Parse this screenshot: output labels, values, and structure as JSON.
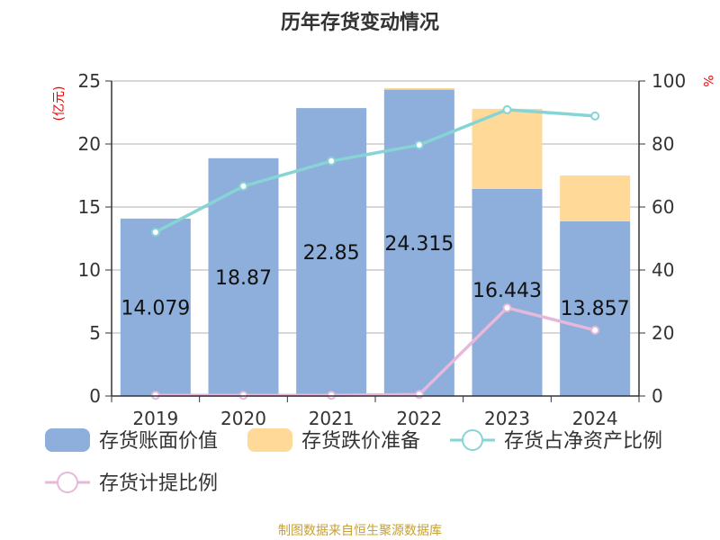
{
  "chart_data": {
    "type": "bar",
    "title": "历年存货变动情况",
    "categories": [
      "2019",
      "2020",
      "2021",
      "2022",
      "2023",
      "2024"
    ],
    "y_left": {
      "label": "(亿元)",
      "lim": [
        0,
        25
      ],
      "ticks": [
        0,
        5,
        10,
        15,
        20,
        25
      ]
    },
    "y_right": {
      "label": "%",
      "lim": [
        0,
        100
      ],
      "ticks": [
        0,
        20,
        40,
        60,
        80,
        100
      ]
    },
    "grid": true,
    "legend_position": "bottom",
    "series": [
      {
        "name": "存货账面价值",
        "type": "bar",
        "stack": "a",
        "axis": "left",
        "color": "#8eaedb",
        "values": [
          14.079,
          18.87,
          22.85,
          24.315,
          16.443,
          13.857
        ],
        "labels": [
          "14.079",
          "18.87",
          "22.85",
          "24.315",
          "16.443",
          "13.857"
        ]
      },
      {
        "name": "存货跌价准备",
        "type": "bar",
        "stack": "a",
        "axis": "left",
        "color": "#fed998",
        "values": [
          0,
          0,
          0,
          0.12,
          6.35,
          3.64
        ]
      },
      {
        "name": "存货占净资产比例",
        "type": "line",
        "axis": "right",
        "color": "#86d4d6",
        "values": [
          52,
          66.6,
          74.6,
          79.7,
          90.9,
          88.9
        ]
      },
      {
        "name": "存货计提比例",
        "type": "line",
        "axis": "right",
        "color": "#e6b8da",
        "values": [
          0.2,
          0.2,
          0.2,
          0.5,
          28,
          20.9
        ]
      }
    ]
  },
  "footer": "制图数据来自恒生聚源数据库"
}
